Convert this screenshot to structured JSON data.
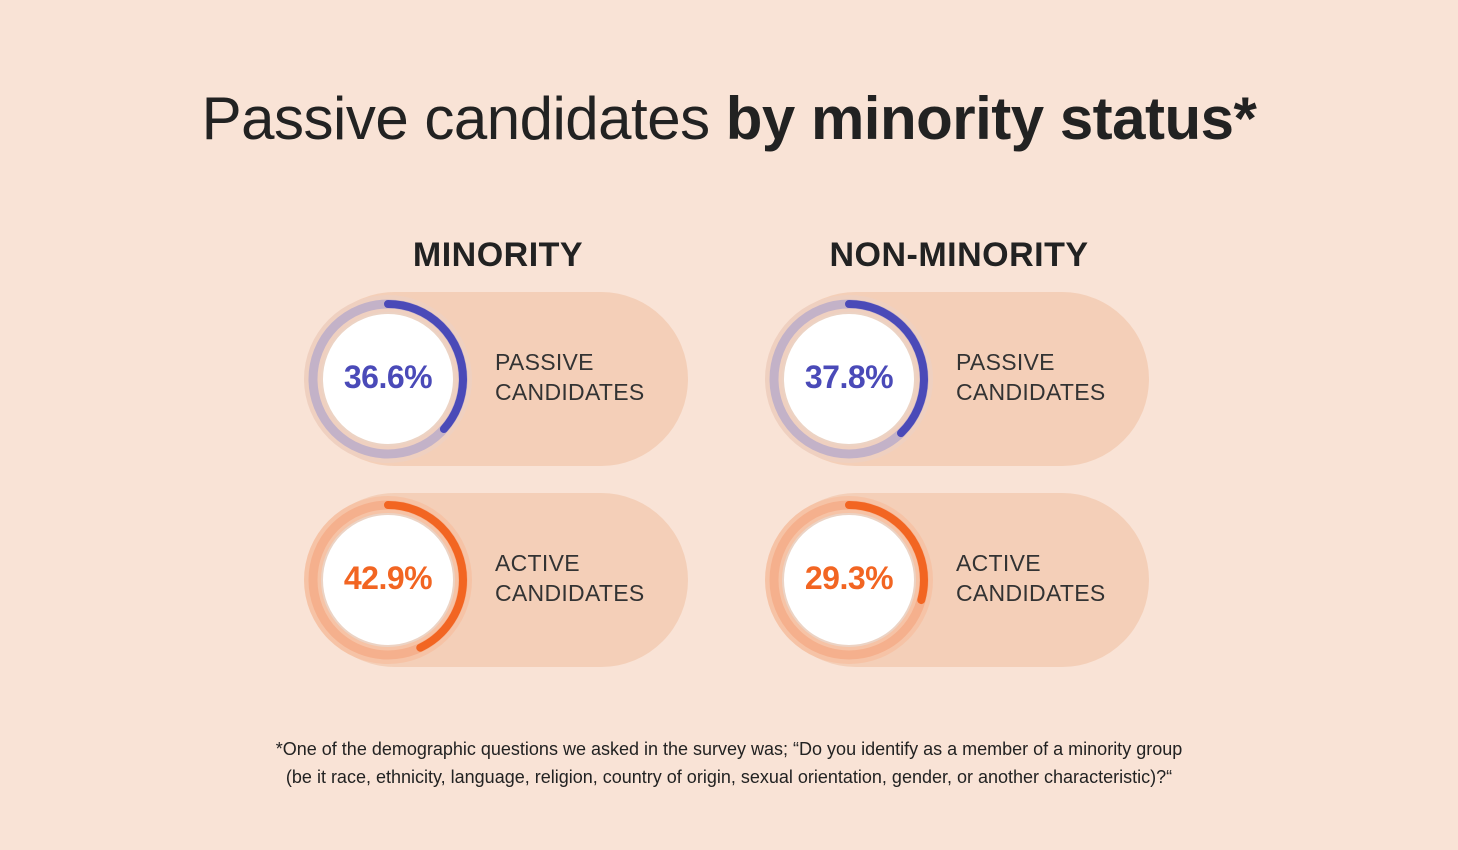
{
  "title": {
    "light": "Passive candidates ",
    "bold": "by minority status*"
  },
  "colors": {
    "background": "#f9e3d6",
    "card": "#f4cfb8",
    "passive": "#4a4ab8",
    "passive_track": "#c3b2c8",
    "active": "#f26522",
    "active_track": "#f5b08d"
  },
  "chart_data": {
    "type": "gauge",
    "groups": [
      {
        "name": "MINORITY",
        "items": [
          {
            "value": 36.6,
            "display": "36.6%",
            "label_line1": "PASSIVE",
            "label_line2": "CANDIDATES",
            "kind": "passive"
          },
          {
            "value": 42.9,
            "display": "42.9%",
            "label_line1": "ACTIVE",
            "label_line2": "CANDIDATES",
            "kind": "active"
          }
        ]
      },
      {
        "name": "NON-MINORITY",
        "items": [
          {
            "value": 37.8,
            "display": "37.8%",
            "label_line1": "PASSIVE",
            "label_line2": "CANDIDATES",
            "kind": "passive"
          },
          {
            "value": 29.3,
            "display": "29.3%",
            "label_line1": "ACTIVE",
            "label_line2": "CANDIDATES",
            "kind": "active"
          }
        ]
      }
    ]
  },
  "footnote": {
    "line1": "*One of the demographic questions we asked in the survey was; “Do you identify as a member of a minority group",
    "line2": "(be it race, ethnicity, language, religion, country of origin, sexual orientation, gender, or another characteristic)?“"
  }
}
